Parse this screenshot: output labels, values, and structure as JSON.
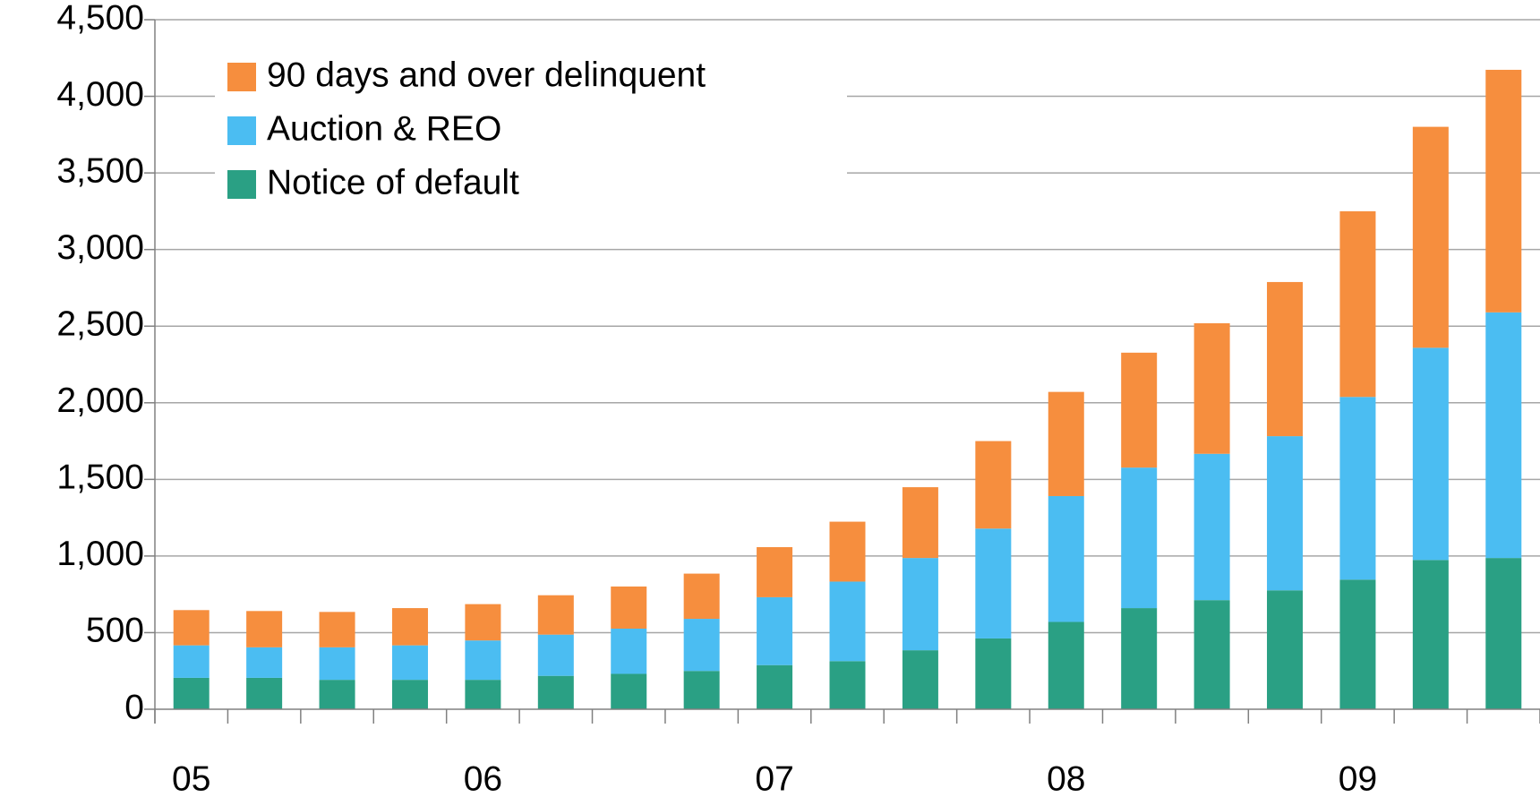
{
  "chart_data": {
    "type": "stacked_bar",
    "categories": [
      "05",
      null,
      null,
      null,
      "06",
      null,
      null,
      null,
      "07",
      null,
      null,
      null,
      "08",
      null,
      null,
      null,
      "09",
      null,
      null
    ],
    "series": [
      {
        "name": "Notice of default",
        "color": "#2aa084",
        "values": [
          205,
          205,
          192,
          192,
          192,
          218,
          231,
          250,
          288,
          314,
          385,
          462,
          570,
          660,
          712,
          776,
          846,
          974,
          987
        ]
      },
      {
        "name": "Auction & REO",
        "color": "#4bbdf2",
        "values": [
          212,
          199,
          212,
          225,
          257,
          269,
          295,
          340,
          443,
          519,
          602,
          717,
          821,
          917,
          955,
          1006,
          1192,
          1385,
          1603
        ]
      },
      {
        "name": "90 days and over delinquent",
        "color": "#f68e3e",
        "values": [
          230,
          237,
          231,
          243,
          237,
          257,
          275,
          295,
          327,
          391,
          462,
          571,
          680,
          750,
          852,
          1006,
          1212,
          1442,
          1583
        ]
      }
    ],
    "ylim": [
      0,
      4500
    ],
    "yticks": [
      0,
      500,
      {
        "value": 1000,
        "label": "1,000"
      },
      {
        "value": 1500,
        "label": "1,500"
      },
      {
        "value": 2000,
        "label": "2,000"
      },
      {
        "value": 2500,
        "label": "2,500"
      },
      {
        "value": 3000,
        "label": "3,000"
      },
      {
        "value": 3500,
        "label": "3,500"
      },
      {
        "value": 4000,
        "label": "4,000"
      },
      {
        "value": 4500,
        "label": "4,500"
      }
    ],
    "grid": true,
    "legend": "upper left"
  }
}
